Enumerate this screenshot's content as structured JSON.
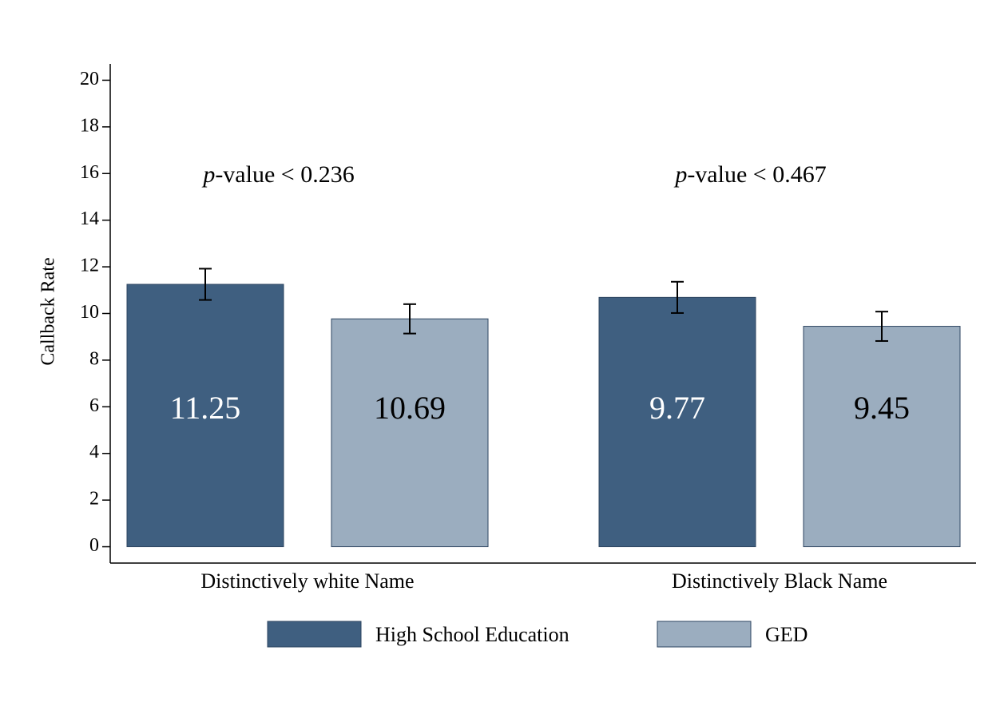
{
  "chart_data": {
    "type": "bar",
    "y_label": "Callback Rate",
    "categories": [
      "Distinctively white Name",
      "Distinctively Black Name"
    ],
    "series": [
      {
        "name": "High School Education",
        "color": "#3f5f80",
        "values": [
          11.25,
          10.69
        ],
        "errors": [
          0.67,
          0.67
        ]
      },
      {
        "name": "GED",
        "color": "#9badbf",
        "values": [
          9.77,
          9.45
        ],
        "errors": [
          0.63,
          0.63
        ]
      }
    ],
    "bar_labels": [
      "11.25",
      "10.69",
      "9.77",
      "9.45"
    ],
    "annotations": [
      {
        "italic": "p",
        "text": "-value < 0.236"
      },
      {
        "italic": "p",
        "text": "-value < 0.467"
      }
    ],
    "ylim": [
      -0.7,
      20.7
    ],
    "yticks": [
      0,
      2,
      4,
      6,
      8,
      10,
      12,
      14,
      16,
      18,
      20
    ],
    "grid": false
  }
}
